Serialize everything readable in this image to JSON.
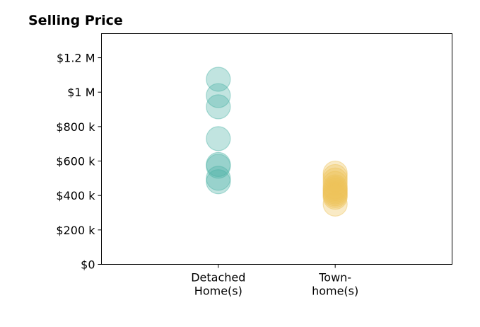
{
  "chart_data": {
    "type": "scatter",
    "title": "Selling Price",
    "xlabel": "",
    "ylabel": "",
    "categories": [
      "Detached\nHome(s)",
      "Town-\nhome(s)"
    ],
    "y_ticks": [
      {
        "value": 0,
        "label": "$0"
      },
      {
        "value": 200000,
        "label": "$200 k"
      },
      {
        "value": 400000,
        "label": "$400 k"
      },
      {
        "value": 600000,
        "label": "$600 k"
      },
      {
        "value": 800000,
        "label": "$800 k"
      },
      {
        "value": 1000000,
        "label": "$1 M"
      },
      {
        "value": 1200000,
        "label": "$1.2 M"
      }
    ],
    "ylim": [
      0,
      1340000
    ],
    "xlim": [
      -1,
      2
    ],
    "grid": false,
    "series": [
      {
        "category_index": 0,
        "color": "#4db3a6",
        "values": [
          1075000,
          980000,
          915000,
          730000,
          580000,
          570000,
          500000,
          480000
        ]
      },
      {
        "category_index": 1,
        "color": "#edc45a",
        "values": [
          530000,
          510000,
          490000,
          470000,
          450000,
          440000,
          430000,
          420000,
          410000,
          400000,
          390000,
          350000
        ]
      }
    ]
  }
}
